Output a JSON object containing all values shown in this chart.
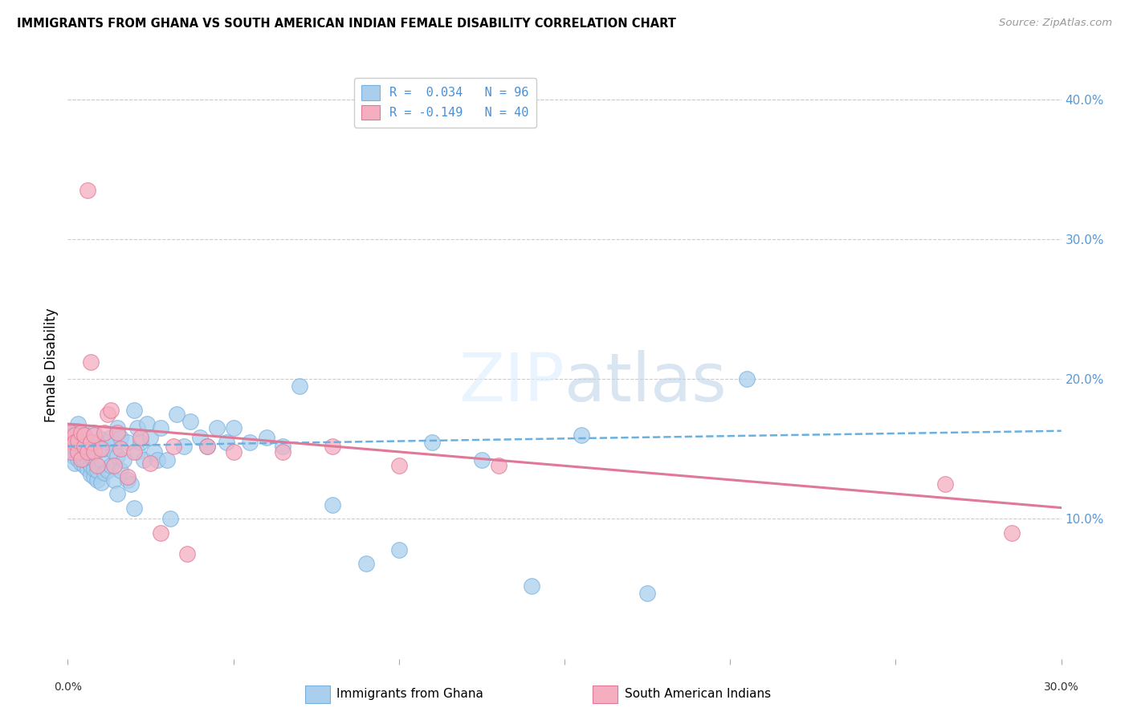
{
  "title": "IMMIGRANTS FROM GHANA VS SOUTH AMERICAN INDIAN FEMALE DISABILITY CORRELATION CHART",
  "source": "Source: ZipAtlas.com",
  "ylabel": "Female Disability",
  "xlim": [
    0.0,
    0.3
  ],
  "ylim": [
    0.0,
    0.42
  ],
  "yticks": [
    0.1,
    0.2,
    0.3,
    0.4
  ],
  "ytick_labels": [
    "10.0%",
    "20.0%",
    "30.0%",
    "40.0%"
  ],
  "ghana_color": "#aacfee",
  "ghana_edge": "#7ab0dc",
  "sai_color": "#f5aec0",
  "sai_edge": "#e07898",
  "ghana_trend_color": "#6ab0e0",
  "sai_trend_color": "#e07898",
  "ghana_trend_start_x": 0.0,
  "ghana_trend_start_y": 0.152,
  "ghana_trend_end_x": 0.3,
  "ghana_trend_end_y": 0.163,
  "sai_trend_start_x": 0.0,
  "sai_trend_start_y": 0.168,
  "sai_trend_end_x": 0.3,
  "sai_trend_end_y": 0.108,
  "legend_label1": "R =  0.034   N = 96",
  "legend_label2": "R = -0.149   N = 40",
  "legend_text_color": "#4a90d9",
  "bottom_label1": "Immigrants from Ghana",
  "bottom_label2": "South American Indians",
  "ghana_x": [
    0.0005,
    0.001,
    0.001,
    0.001,
    0.0015,
    0.0015,
    0.002,
    0.002,
    0.002,
    0.002,
    0.0025,
    0.003,
    0.003,
    0.003,
    0.003,
    0.003,
    0.003,
    0.004,
    0.004,
    0.004,
    0.004,
    0.004,
    0.005,
    0.005,
    0.005,
    0.005,
    0.005,
    0.006,
    0.006,
    0.006,
    0.006,
    0.007,
    0.007,
    0.007,
    0.007,
    0.008,
    0.008,
    0.008,
    0.008,
    0.009,
    0.009,
    0.009,
    0.01,
    0.01,
    0.01,
    0.011,
    0.011,
    0.012,
    0.012,
    0.013,
    0.013,
    0.014,
    0.014,
    0.015,
    0.015,
    0.015,
    0.016,
    0.016,
    0.017,
    0.018,
    0.018,
    0.019,
    0.02,
    0.02,
    0.021,
    0.021,
    0.022,
    0.023,
    0.024,
    0.025,
    0.026,
    0.027,
    0.028,
    0.03,
    0.031,
    0.033,
    0.035,
    0.037,
    0.04,
    0.042,
    0.045,
    0.048,
    0.05,
    0.055,
    0.06,
    0.065,
    0.07,
    0.08,
    0.09,
    0.1,
    0.11,
    0.125,
    0.14,
    0.155,
    0.175,
    0.205
  ],
  "ghana_y": [
    0.155,
    0.148,
    0.153,
    0.162,
    0.145,
    0.158,
    0.14,
    0.15,
    0.156,
    0.162,
    0.148,
    0.143,
    0.148,
    0.153,
    0.158,
    0.163,
    0.168,
    0.14,
    0.145,
    0.15,
    0.155,
    0.16,
    0.138,
    0.142,
    0.147,
    0.153,
    0.16,
    0.136,
    0.141,
    0.148,
    0.155,
    0.132,
    0.138,
    0.145,
    0.152,
    0.13,
    0.136,
    0.143,
    0.162,
    0.128,
    0.135,
    0.155,
    0.126,
    0.142,
    0.157,
    0.133,
    0.15,
    0.135,
    0.155,
    0.138,
    0.158,
    0.128,
    0.148,
    0.118,
    0.145,
    0.165,
    0.135,
    0.158,
    0.142,
    0.128,
    0.155,
    0.125,
    0.178,
    0.108,
    0.148,
    0.165,
    0.155,
    0.142,
    0.168,
    0.158,
    0.148,
    0.142,
    0.165,
    0.142,
    0.1,
    0.175,
    0.152,
    0.17,
    0.158,
    0.152,
    0.165,
    0.155,
    0.165,
    0.155,
    0.158,
    0.152,
    0.195,
    0.11,
    0.068,
    0.078,
    0.155,
    0.142,
    0.052,
    0.16,
    0.047,
    0.2
  ],
  "sai_x": [
    0.0005,
    0.001,
    0.001,
    0.002,
    0.002,
    0.003,
    0.003,
    0.004,
    0.004,
    0.005,
    0.005,
    0.006,
    0.006,
    0.007,
    0.007,
    0.008,
    0.008,
    0.009,
    0.01,
    0.011,
    0.012,
    0.013,
    0.014,
    0.015,
    0.016,
    0.018,
    0.02,
    0.022,
    0.025,
    0.028,
    0.032,
    0.036,
    0.042,
    0.05,
    0.065,
    0.08,
    0.1,
    0.13,
    0.265,
    0.285
  ],
  "sai_y": [
    0.155,
    0.162,
    0.148,
    0.16,
    0.155,
    0.148,
    0.156,
    0.143,
    0.162,
    0.152,
    0.16,
    0.148,
    0.335,
    0.155,
    0.212,
    0.16,
    0.148,
    0.138,
    0.15,
    0.162,
    0.175,
    0.178,
    0.138,
    0.162,
    0.15,
    0.13,
    0.148,
    0.158,
    0.14,
    0.09,
    0.152,
    0.075,
    0.152,
    0.148,
    0.148,
    0.152,
    0.138,
    0.138,
    0.125,
    0.09
  ]
}
